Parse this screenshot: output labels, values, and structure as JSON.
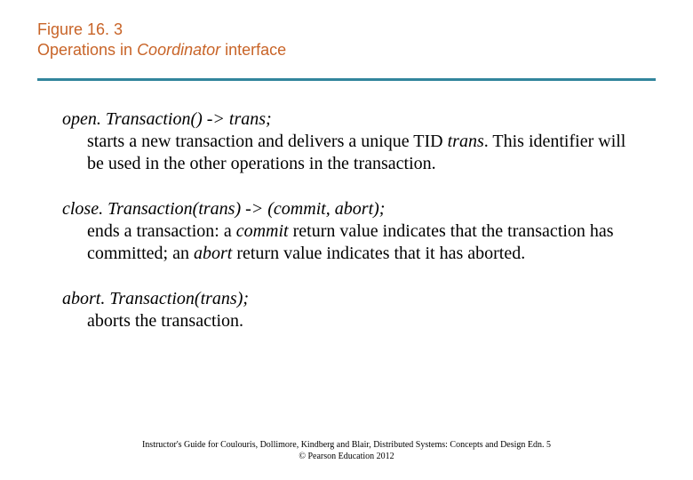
{
  "colors": {
    "title": "#c86428",
    "bar": "#31859c",
    "text": "#000000",
    "background": "#ffffff"
  },
  "title": {
    "line1": "Figure 16. 3",
    "line2_prefix": "Operations in ",
    "line2_italic": "Coordinator",
    "line2_suffix": " interface"
  },
  "operations": [
    {
      "signature": "open. Transaction() -> trans;",
      "desc_parts": [
        {
          "t": "starts a new transaction and delivers a unique TID ",
          "it": false
        },
        {
          "t": "trans",
          "it": true
        },
        {
          "t": ". This identifier will be used in the other operations in the transaction.",
          "it": false
        }
      ]
    },
    {
      "signature": "close. Transaction(trans) -> (commit, abort);",
      "desc_parts": [
        {
          "t": "ends a transaction: a ",
          "it": false
        },
        {
          "t": "commit",
          "it": true
        },
        {
          "t": " return value indicates that the transaction has  committed; an ",
          "it": false
        },
        {
          "t": "abort",
          "it": true
        },
        {
          "t": " return value indicates that it  has aborted.",
          "it": false
        }
      ]
    },
    {
      "signature": "abort. Transaction(trans);",
      "desc_parts": [
        {
          "t": "aborts the transaction.",
          "it": false
        }
      ]
    }
  ],
  "footer": {
    "line1": "Instructor's Guide for  Coulouris, Dollimore, Kindberg and Blair,  Distributed Systems: Concepts and Design   Edn. 5",
    "line2": "©  Pearson Education 2012"
  }
}
